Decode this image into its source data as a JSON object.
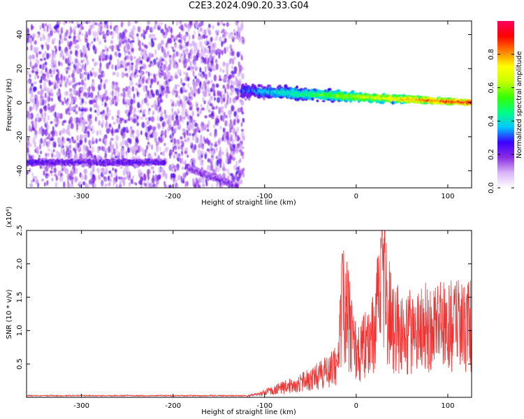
{
  "title": "C2E3.2024.090.20.33.G04",
  "chart_data": [
    {
      "type": "heatmap",
      "xlabel": "Height of straight line (km)",
      "ylabel": "Frequency (Hz)",
      "xlim": [
        -360,
        126
      ],
      "ylim": [
        -50,
        48
      ],
      "xticks": [
        -300,
        -200,
        -100,
        0,
        100
      ],
      "yticks": [
        -40,
        -20,
        0,
        20,
        40
      ],
      "colorbar": {
        "label": "Normalized spectral amplitude",
        "range": [
          0,
          1
        ],
        "ticks": [
          "0.0",
          "0.2",
          "0.4",
          "0.6",
          "0.8"
        ],
        "colors": [
          "#ffffff",
          "#d8b4f8",
          "#8a2be2",
          "#3a00ff",
          "#00c8ff",
          "#00ff80",
          "#39ff00",
          "#c8ff00",
          "#ffff00",
          "#ff8000",
          "#ff0000",
          "#ff0060"
        ]
      },
      "features": [
        {
          "name": "diffuse noise",
          "x_range": [
            -360,
            -123
          ],
          "freq_range": [
            -50,
            48
          ],
          "amplitude": 0.1
        },
        {
          "name": "band A",
          "x_range": [
            -360,
            -210
          ],
          "freq_center": -35,
          "amplitude": 0.25
        },
        {
          "name": "band B",
          "x_range": [
            -185,
            -130
          ],
          "freq_start": -38,
          "freq_end": -49,
          "amplitude": 0.2
        },
        {
          "name": "main signal",
          "x_range": [
            -125,
            126
          ],
          "freq_start": 7,
          "freq_end": 0,
          "amplitude_start": 0.3,
          "amplitude_end": 1.0
        }
      ],
      "grid": false
    },
    {
      "type": "line",
      "xlabel": "Height of straight line (km)",
      "ylabel": "SNR (10 * v/v)",
      "y_scale_label": "(x10⁴)",
      "xlim": [
        -360,
        126
      ],
      "ylim": [
        0,
        2.5
      ],
      "xticks": [
        -300,
        -200,
        -100,
        0,
        100
      ],
      "yticks": [
        0.5,
        1.0,
        1.5,
        2.0,
        2.5
      ],
      "color": "#ee3333",
      "series": [
        {
          "x": [
            -360,
            -300,
            -200,
            -120,
            -100,
            -80,
            -60,
            -40,
            -20,
            -15,
            0,
            20,
            28,
            40,
            60,
            80,
            100,
            126
          ],
          "values": [
            0.02,
            0.02,
            0.02,
            0.02,
            0.1,
            0.2,
            0.3,
            0.45,
            0.65,
            2.15,
            0.85,
            1.3,
            2.5,
            1.45,
            1.35,
            1.5,
            1.45,
            1.5
          ]
        }
      ],
      "grid": false
    }
  ]
}
